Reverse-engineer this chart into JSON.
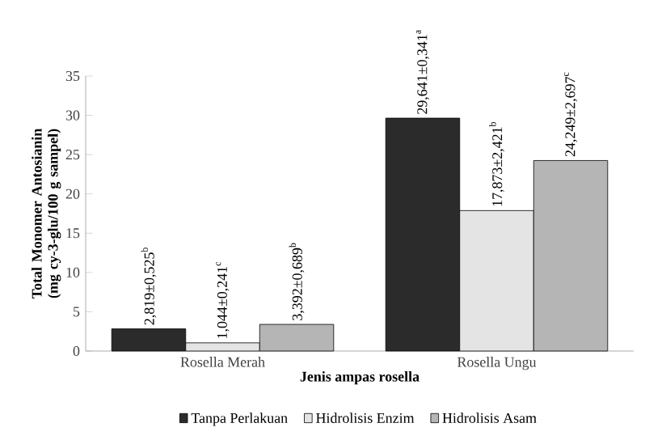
{
  "chart_data": {
    "type": "bar",
    "xlabel": "Jenis ampas rosella",
    "ylabel": "Total Monomer Antosianin (mg cy-3-glu/100 g sampel)",
    "categories": [
      "Rosella Merah",
      "Rosella Ungu"
    ],
    "series": [
      {
        "name": "Tanpa Perlakuan",
        "color": "#2b2b2b",
        "values": [
          2.819,
          29.641
        ],
        "value_labels": [
          "2,819±0,525$^{b}$",
          "29,641±0,341$^{a}$"
        ]
      },
      {
        "name": "Hidrolisis Enzim",
        "color": "#e4e4e4",
        "values": [
          1.044,
          17.873
        ],
        "value_labels": [
          "1,044±0,241$^{c}$",
          "17,873±2,421$^{b}$"
        ]
      },
      {
        "name": "Hidrolisis Asam",
        "color": "#b5b5b5",
        "values": [
          3.392,
          24.249
        ],
        "value_labels": [
          "3,392±0,689$^{b}$",
          "24,249±2,697$^{c}$"
        ]
      }
    ],
    "ylim": [
      0,
      35
    ],
    "yticks": [
      0,
      5,
      10,
      15,
      20,
      25,
      30,
      35
    ],
    "grid": false,
    "legend": "bottom"
  }
}
